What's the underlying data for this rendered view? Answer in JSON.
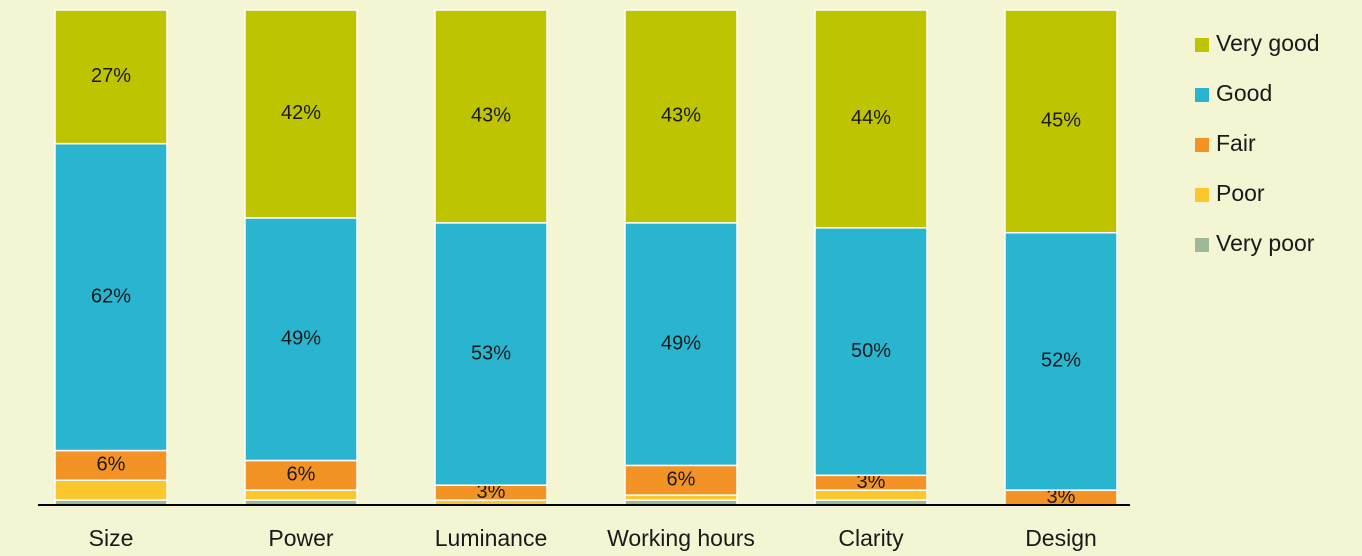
{
  "chart_data": {
    "type": "stacked_bar",
    "categories": [
      "Size",
      "Power",
      "Luminance",
      "Working hours",
      "Clarity",
      "Design"
    ],
    "ylim": [
      0,
      100
    ],
    "series": [
      {
        "name": "Very good",
        "color": "#bfc400",
        "values": [
          27,
          42,
          43,
          43,
          44,
          45
        ],
        "value_labels": [
          "27%",
          "42%",
          "43%",
          "43%",
          "44%",
          "45%"
        ]
      },
      {
        "name": "Good",
        "color": "#29b5cf",
        "values": [
          62,
          49,
          53,
          49,
          50,
          52
        ],
        "value_labels": [
          "62%",
          "49%",
          "53%",
          "49%",
          "50%",
          "52%"
        ]
      },
      {
        "name": "Fair",
        "color": "#f39325",
        "values": [
          6,
          6,
          3,
          6,
          3,
          3
        ],
        "value_labels": [
          "6%",
          "6%",
          "3%",
          "6%",
          "3%",
          "3%"
        ]
      },
      {
        "name": "Poor",
        "color": "#fcc62d",
        "values": [
          4,
          2,
          1,
          1,
          2,
          0
        ],
        "value_labels": [
          null,
          null,
          null,
          null,
          null,
          null
        ]
      },
      {
        "name": "Very poor",
        "color": "#9fb89a",
        "values": [
          1,
          1,
          0,
          1,
          1,
          0
        ],
        "value_labels": [
          null,
          null,
          null,
          null,
          null,
          null
        ]
      }
    ],
    "legend": "right"
  }
}
